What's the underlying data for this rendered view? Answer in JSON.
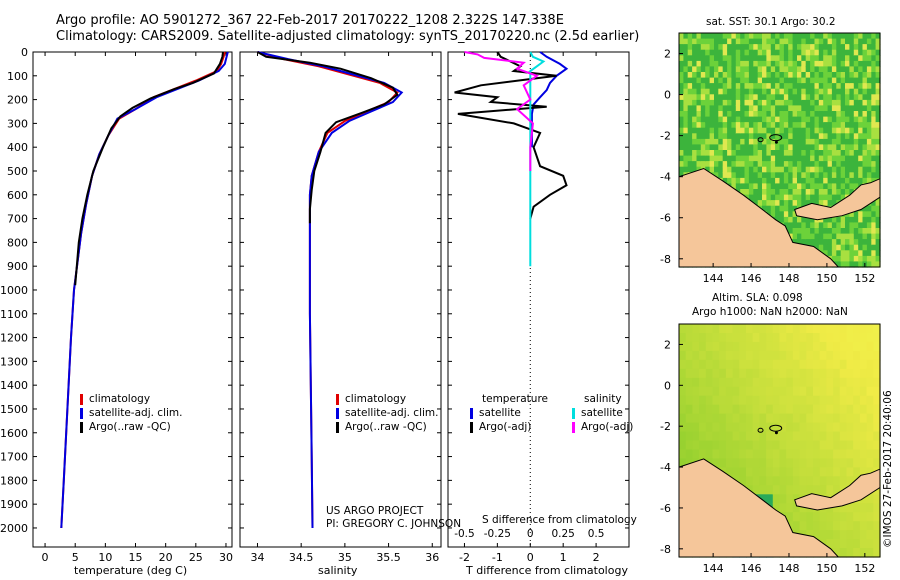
{
  "header": {
    "line1": "Argo profile: AO 5901272_367 22-Feb-2017 20170222_1208 2.322S 147.338E",
    "line2": "Climatology: CARS2009. Satellite-adjusted climatology: synTS_20170220.nc (2.5d earlier)"
  },
  "colors": {
    "climatology": "#e00000",
    "satellite": "#0000e0",
    "argo": "#000000",
    "salinity_satellite": "#00dede",
    "salinity_argo": "#ff00ff",
    "land": "#f5c69a"
  },
  "chart_data": [
    {
      "type": "line",
      "name": "temperature-profile",
      "xlabel": "temperature (deg C)",
      "ylabel": "",
      "xlim": [
        -2,
        31
      ],
      "ylim": [
        0,
        2080
      ],
      "xticks": [
        "0",
        "5",
        "10",
        "15",
        "20",
        "25",
        "30"
      ],
      "yticks": [
        "0",
        "100",
        "200",
        "300",
        "400",
        "500",
        "600",
        "700",
        "800",
        "900",
        "1000",
        "1100",
        "1200",
        "1300",
        "1400",
        "1500",
        "1600",
        "1700",
        "1800",
        "1900",
        "2000"
      ],
      "legend": [
        "climatology",
        "satellite-adj. clim.",
        "Argo(..raw -QC)"
      ],
      "series": [
        {
          "name": "climatology",
          "points": [
            [
              29.8,
              0
            ],
            [
              29.6,
              20
            ],
            [
              29.2,
              50
            ],
            [
              28.5,
              80
            ],
            [
              25,
              120
            ],
            [
              22,
              150
            ],
            [
              18,
              190
            ],
            [
              15,
              240
            ],
            [
              12.3,
              280
            ],
            [
              10.5,
              350
            ],
            [
              9,
              430
            ],
            [
              7.8,
              520
            ],
            [
              6.8,
              640
            ],
            [
              6,
              760
            ],
            [
              5.3,
              900
            ],
            [
              4.8,
              1000
            ],
            [
              4.3,
              1200
            ],
            [
              3.9,
              1400
            ],
            [
              3.5,
              1600
            ],
            [
              3.1,
              1800
            ],
            [
              2.7,
              2000
            ]
          ]
        },
        {
          "name": "satellite-adj. clim.",
          "points": [
            [
              30.3,
              0
            ],
            [
              30.1,
              20
            ],
            [
              29.8,
              50
            ],
            [
              28.8,
              80
            ],
            [
              25.5,
              120
            ],
            [
              22.5,
              150
            ],
            [
              18.5,
              190
            ],
            [
              15,
              240
            ],
            [
              12,
              280
            ],
            [
              10.5,
              350
            ],
            [
              9,
              430
            ],
            [
              7.8,
              520
            ],
            [
              6.8,
              640
            ],
            [
              6,
              760
            ],
            [
              5.3,
              900
            ],
            [
              4.8,
              1000
            ],
            [
              4.3,
              1200
            ],
            [
              3.9,
              1400
            ],
            [
              3.5,
              1600
            ],
            [
              3.1,
              1800
            ],
            [
              2.7,
              2000
            ]
          ]
        },
        {
          "name": "Argo(..raw -QC)",
          "points": [
            [
              29.5,
              0
            ],
            [
              29.4,
              20
            ],
            [
              29,
              50
            ],
            [
              28,
              90
            ],
            [
              24.5,
              130
            ],
            [
              21.5,
              155
            ],
            [
              17.5,
              195
            ],
            [
              14.5,
              235
            ],
            [
              12.5,
              270
            ],
            [
              11,
              320
            ],
            [
              9.6,
              400
            ],
            [
              8,
              500
            ],
            [
              7,
              600
            ],
            [
              6.2,
              700
            ],
            [
              5.6,
              800
            ],
            [
              5,
              980
            ]
          ]
        }
      ]
    },
    {
      "type": "line",
      "name": "salinity-profile",
      "xlabel": "salinity",
      "xlim": [
        33.8,
        36.1
      ],
      "ylim": [
        0,
        2080
      ],
      "xticks": [
        "34",
        "34.5",
        "35",
        "35.5",
        "36"
      ],
      "legend": [
        "climatology",
        "satellite-adj. clim.",
        "Argo(..raw -QC)"
      ],
      "annotation": [
        "US ARGO PROJECT",
        "PI: GREGORY C. JOHNSON"
      ],
      "series": [
        {
          "name": "climatology",
          "points": [
            [
              34.0,
              0
            ],
            [
              34.3,
              30
            ],
            [
              34.7,
              60
            ],
            [
              35.0,
              90
            ],
            [
              35.4,
              130
            ],
            [
              35.6,
              170
            ],
            [
              35.5,
              210
            ],
            [
              35.25,
              250
            ],
            [
              35.0,
              290
            ],
            [
              34.8,
              340
            ],
            [
              34.7,
              420
            ],
            [
              34.62,
              520
            ],
            [
              34.6,
              600
            ],
            [
              34.6,
              700
            ],
            [
              34.6,
              900
            ],
            [
              34.6,
              1100
            ],
            [
              34.61,
              1400
            ],
            [
              34.62,
              1700
            ],
            [
              34.63,
              2000
            ]
          ]
        },
        {
          "name": "satellite-adj. clim.",
          "points": [
            [
              34.0,
              0
            ],
            [
              34.35,
              30
            ],
            [
              34.75,
              60
            ],
            [
              35.05,
              90
            ],
            [
              35.45,
              130
            ],
            [
              35.65,
              170
            ],
            [
              35.55,
              210
            ],
            [
              35.3,
              250
            ],
            [
              35.05,
              290
            ],
            [
              34.85,
              340
            ],
            [
              34.7,
              420
            ],
            [
              34.62,
              520
            ],
            [
              34.6,
              600
            ],
            [
              34.6,
              700
            ],
            [
              34.6,
              900
            ],
            [
              34.6,
              1100
            ],
            [
              34.61,
              1400
            ],
            [
              34.62,
              1700
            ],
            [
              34.63,
              2000
            ]
          ]
        },
        {
          "name": "Argo(..raw -QC)",
          "points": [
            [
              34.0,
              0
            ],
            [
              34.1,
              20
            ],
            [
              34.6,
              45
            ],
            [
              34.95,
              70
            ],
            [
              35.3,
              110
            ],
            [
              35.55,
              150
            ],
            [
              35.6,
              180
            ],
            [
              35.45,
              220
            ],
            [
              35.2,
              255
            ],
            [
              34.9,
              295
            ],
            [
              34.78,
              340
            ],
            [
              34.72,
              420
            ],
            [
              34.65,
              500
            ],
            [
              34.62,
              580
            ],
            [
              34.6,
              660
            ],
            [
              34.6,
              720
            ]
          ]
        }
      ]
    },
    {
      "type": "line",
      "name": "difference-profile",
      "xlabel": "T difference from climatology",
      "xlabel_top": "S difference from climatology",
      "xlim": [
        -2.5,
        3.0
      ],
      "ylim": [
        0,
        2080
      ],
      "xticks": [
        "-2",
        "-1",
        "0",
        "1",
        "2"
      ],
      "xticks_top": [
        "-0.5",
        "-0.25",
        "0",
        "0.25",
        "0.5"
      ],
      "legend_temperature": {
        "title": "temperature",
        "items": [
          "satellite",
          "Argo(-adj)"
        ]
      },
      "legend_salinity": {
        "title": "salinity",
        "items": [
          "satellite",
          "Argo(-adj)"
        ]
      },
      "series": [
        {
          "name": "temperature satellite",
          "points": [
            [
              0.3,
              0
            ],
            [
              0.5,
              20
            ],
            [
              0.9,
              50
            ],
            [
              1.1,
              70
            ],
            [
              0.8,
              100
            ],
            [
              0.6,
              130
            ],
            [
              0.5,
              160
            ],
            [
              0.3,
              190
            ],
            [
              0.1,
              220
            ],
            [
              0.05,
              260
            ],
            [
              0.05,
              300
            ],
            [
              0.05,
              350
            ],
            [
              0.05,
              400
            ]
          ]
        },
        {
          "name": "temperature Argo(-adj)",
          "points": [
            [
              -1.0,
              0
            ],
            [
              -0.9,
              20
            ],
            [
              -0.6,
              40
            ],
            [
              -0.3,
              60
            ],
            [
              -0.5,
              80
            ],
            [
              0.8,
              100
            ],
            [
              -1.5,
              140
            ],
            [
              -2.3,
              170
            ],
            [
              -1.0,
              190
            ],
            [
              -1.2,
              210
            ],
            [
              0.5,
              230
            ],
            [
              -2.2,
              260
            ],
            [
              -0.5,
              300
            ],
            [
              0.3,
              340
            ],
            [
              0.1,
              400
            ],
            [
              0.3,
              480
            ],
            [
              1.0,
              520
            ],
            [
              1.1,
              560
            ],
            [
              0.6,
              600
            ],
            [
              0.1,
              650
            ],
            [
              0.0,
              700
            ]
          ]
        },
        {
          "name": "salinity satellite",
          "points": [
            [
              0.0,
              0
            ],
            [
              0.02,
              20
            ],
            [
              0.1,
              40
            ],
            [
              0.05,
              60
            ],
            [
              0.0,
              80
            ],
            [
              0.0,
              150
            ],
            [
              0.0,
              250
            ],
            [
              0.0,
              400
            ],
            [
              0.0,
              600
            ],
            [
              0.0,
              800
            ],
            [
              0.0,
              900
            ]
          ]
        },
        {
          "name": "salinity Argo(-adj)",
          "points": [
            [
              -0.5,
              0
            ],
            [
              -0.4,
              10
            ],
            [
              -0.35,
              25
            ],
            [
              -0.05,
              45
            ],
            [
              -0.1,
              70
            ],
            [
              0.05,
              100
            ],
            [
              -0.05,
              140
            ],
            [
              0.0,
              200
            ],
            [
              -0.1,
              240
            ],
            [
              0.02,
              300
            ],
            [
              0.0,
              400
            ],
            [
              0.0,
              500
            ]
          ]
        }
      ]
    },
    {
      "type": "heatmap",
      "name": "sst-map",
      "title": "sat. SST: 30.1  Argo: 30.2",
      "xticks": [
        "144",
        "146",
        "148",
        "150",
        "152"
      ],
      "yticks": [
        "2",
        "0",
        "-2",
        "-4",
        "-6",
        "-8"
      ]
    },
    {
      "type": "heatmap",
      "name": "sla-map",
      "title_lines": [
        "Altim. SLA: 0.098",
        "Argo h1000: NaN h2000: NaN"
      ],
      "xticks": [
        "144",
        "146",
        "148",
        "150",
        "152"
      ],
      "yticks": [
        "2",
        "0",
        "-2",
        "-4",
        "-6",
        "-8"
      ]
    }
  ],
  "footer": {
    "watermark": "©IMOS 27-Feb-2017 20:40:06"
  }
}
